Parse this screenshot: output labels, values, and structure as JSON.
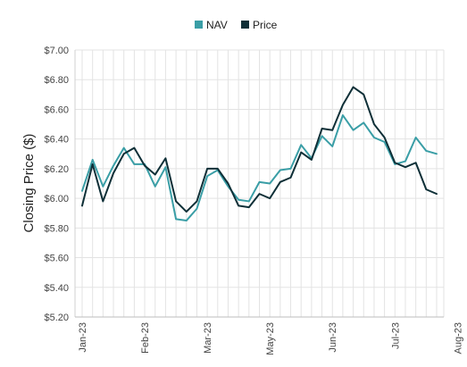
{
  "chart_data": {
    "type": "line",
    "ylabel": "Closing Price ($)",
    "ylim": [
      5.2,
      7.0
    ],
    "y_ticks": [
      "$7.00",
      "$6.80",
      "$6.60",
      "$6.40",
      "$6.20",
      "$6.00",
      "$5.80",
      "$5.60",
      "$5.40",
      "$5.20"
    ],
    "y_tick_values": [
      7.0,
      6.8,
      6.6,
      6.4,
      6.2,
      6.0,
      5.8,
      5.6,
      5.4,
      5.2
    ],
    "x_tick_labels": [
      "Jan-23",
      "Feb-23",
      "Mar-23",
      "May-23",
      "Jun-23",
      "Jul-23",
      "Aug-23"
    ],
    "x_tick_indices": [
      0,
      6,
      12,
      18,
      24,
      30,
      36
    ],
    "grid": true,
    "legend_position": "top-center",
    "colors": {
      "NAV": "#3a9ea6",
      "Price": "#0e2f37"
    },
    "series": [
      {
        "name": "NAV",
        "values": [
          6.05,
          6.26,
          6.08,
          6.22,
          6.34,
          6.23,
          6.23,
          6.08,
          6.21,
          5.86,
          5.85,
          5.93,
          6.15,
          6.19,
          6.08,
          5.99,
          5.98,
          6.11,
          6.1,
          6.19,
          6.2,
          6.36,
          6.27,
          6.42,
          6.35,
          6.56,
          6.46,
          6.51,
          6.41,
          6.38,
          6.23,
          6.25,
          6.41,
          6.32,
          6.3
        ]
      },
      {
        "name": "Price",
        "values": [
          5.95,
          6.23,
          5.98,
          6.17,
          6.3,
          6.34,
          6.22,
          6.16,
          6.27,
          5.98,
          5.91,
          5.98,
          6.2,
          6.2,
          6.1,
          5.95,
          5.94,
          6.03,
          6.0,
          6.11,
          6.14,
          6.31,
          6.26,
          6.47,
          6.46,
          6.63,
          6.75,
          6.7,
          6.5,
          6.41,
          6.24,
          6.21,
          6.24,
          6.06,
          6.03
        ]
      }
    ]
  }
}
